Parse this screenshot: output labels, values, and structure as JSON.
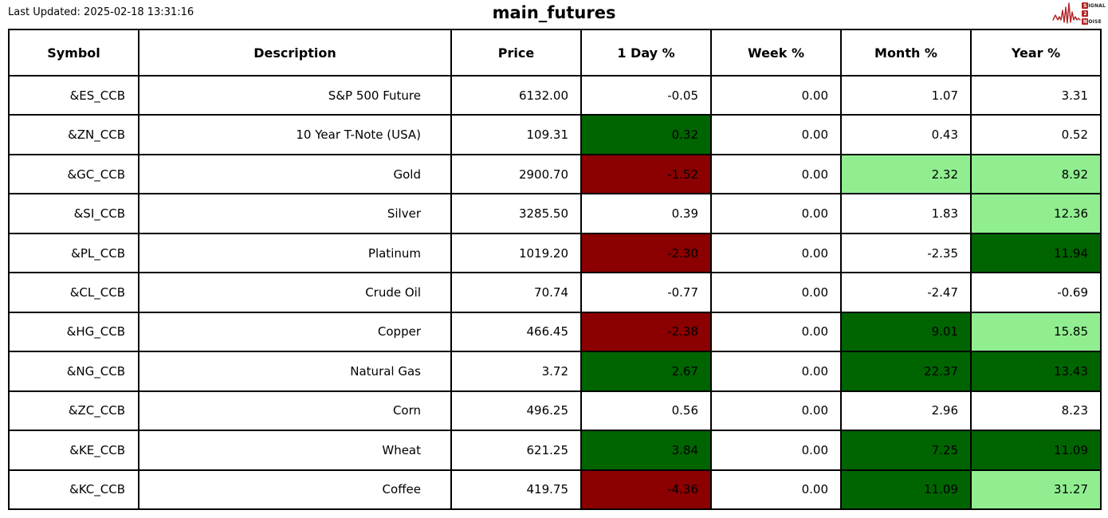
{
  "header": {
    "last_updated": "Last Updated: 2025-02-18 13:31:16",
    "title": "main_futures",
    "logo": {
      "line1_box": "S",
      "line1_rest": "IGNAL",
      "line2_box": "2",
      "line2_rest": "",
      "line3_box": "N",
      "line3_rest": "OISE"
    }
  },
  "colors": {
    "dark_green": "#006400",
    "light_green": "#90EE90",
    "dark_red": "#8B0000",
    "border": "#000000",
    "logo_red": "#b22222"
  },
  "chart_data": {
    "type": "table",
    "title": "main_futures",
    "columns": [
      "Symbol",
      "Description",
      "Price",
      "1 Day %",
      "Week %",
      "Month %",
      "Year %"
    ],
    "rows": [
      {
        "symbol": "&ES_CCB",
        "description": "S&P 500 Future",
        "price": "6132.00",
        "pcts": [
          {
            "v": "-0.05",
            "bg": null
          },
          {
            "v": "0.00",
            "bg": null
          },
          {
            "v": "1.07",
            "bg": null
          },
          {
            "v": "3.31",
            "bg": null
          }
        ]
      },
      {
        "symbol": "&ZN_CCB",
        "description": "10 Year T-Note (USA)",
        "price": "109.31",
        "pcts": [
          {
            "v": "0.32",
            "bg": "dark_green"
          },
          {
            "v": "0.00",
            "bg": null
          },
          {
            "v": "0.43",
            "bg": null
          },
          {
            "v": "0.52",
            "bg": null
          }
        ]
      },
      {
        "symbol": "&GC_CCB",
        "description": "Gold",
        "price": "2900.70",
        "pcts": [
          {
            "v": "-1.52",
            "bg": "dark_red"
          },
          {
            "v": "0.00",
            "bg": null
          },
          {
            "v": "2.32",
            "bg": "light_green"
          },
          {
            "v": "8.92",
            "bg": "light_green"
          }
        ]
      },
      {
        "symbol": "&SI_CCB",
        "description": "Silver",
        "price": "3285.50",
        "pcts": [
          {
            "v": "0.39",
            "bg": null
          },
          {
            "v": "0.00",
            "bg": null
          },
          {
            "v": "1.83",
            "bg": null
          },
          {
            "v": "12.36",
            "bg": "light_green"
          }
        ]
      },
      {
        "symbol": "&PL_CCB",
        "description": "Platinum",
        "price": "1019.20",
        "pcts": [
          {
            "v": "-2.30",
            "bg": "dark_red"
          },
          {
            "v": "0.00",
            "bg": null
          },
          {
            "v": "-2.35",
            "bg": null
          },
          {
            "v": "11.94",
            "bg": "dark_green"
          }
        ]
      },
      {
        "symbol": "&CL_CCB",
        "description": "Crude Oil",
        "price": "70.74",
        "pcts": [
          {
            "v": "-0.77",
            "bg": null
          },
          {
            "v": "0.00",
            "bg": null
          },
          {
            "v": "-2.47",
            "bg": null
          },
          {
            "v": "-0.69",
            "bg": null
          }
        ]
      },
      {
        "symbol": "&HG_CCB",
        "description": "Copper",
        "price": "466.45",
        "pcts": [
          {
            "v": "-2.38",
            "bg": "dark_red"
          },
          {
            "v": "0.00",
            "bg": null
          },
          {
            "v": "9.01",
            "bg": "dark_green"
          },
          {
            "v": "15.85",
            "bg": "light_green"
          }
        ]
      },
      {
        "symbol": "&NG_CCB",
        "description": "Natural Gas",
        "price": "3.72",
        "pcts": [
          {
            "v": "2.67",
            "bg": "dark_green"
          },
          {
            "v": "0.00",
            "bg": null
          },
          {
            "v": "22.37",
            "bg": "dark_green"
          },
          {
            "v": "13.43",
            "bg": "dark_green"
          }
        ]
      },
      {
        "symbol": "&ZC_CCB",
        "description": "Corn",
        "price": "496.25",
        "pcts": [
          {
            "v": "0.56",
            "bg": null
          },
          {
            "v": "0.00",
            "bg": null
          },
          {
            "v": "2.96",
            "bg": null
          },
          {
            "v": "8.23",
            "bg": null
          }
        ]
      },
      {
        "symbol": "&KE_CCB",
        "description": "Wheat",
        "price": "621.25",
        "pcts": [
          {
            "v": "3.84",
            "bg": "dark_green"
          },
          {
            "v": "0.00",
            "bg": null
          },
          {
            "v": "7.25",
            "bg": "dark_green"
          },
          {
            "v": "11.09",
            "bg": "dark_green"
          }
        ]
      },
      {
        "symbol": "&KC_CCB",
        "description": "Coffee",
        "price": "419.75",
        "pcts": [
          {
            "v": "-4.36",
            "bg": "dark_red"
          },
          {
            "v": "0.00",
            "bg": null
          },
          {
            "v": "11.09",
            "bg": "dark_green"
          },
          {
            "v": "31.27",
            "bg": "light_green"
          }
        ]
      }
    ]
  }
}
